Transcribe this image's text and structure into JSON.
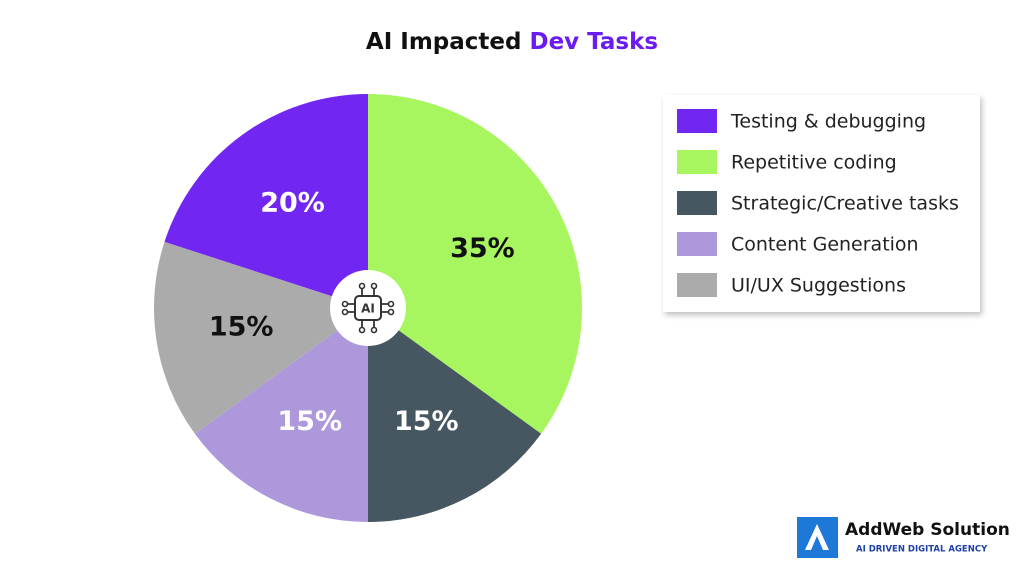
{
  "chart_data": {
    "type": "pie",
    "title": {
      "lead": "AI Impacted",
      "highlight": "Dev Tasks"
    },
    "categories": [
      "Testing & debugging",
      "Repetitive coding",
      "Strategic/Creative tasks",
      "Content Generation",
      "UI/UX Suggestions"
    ],
    "values": [
      20,
      35,
      15,
      15,
      15
    ],
    "value_labels": [
      "20%",
      "35%",
      "15%",
      "15%",
      "15%"
    ],
    "colors": [
      "#7226f2",
      "#a8f65f",
      "#465761",
      "#ad98dc",
      "#ababab"
    ],
    "label_colors": [
      "#ffffff",
      "#111111",
      "#ffffff",
      "#ffffff",
      "#111111"
    ],
    "title_highlight_color": "#6a1bf0",
    "center_icon_label": "AI",
    "legend": "top-right"
  },
  "branding": {
    "name": "AddWeb Solution",
    "tagline": "AI DRIVEN DIGITAL AGENCY"
  }
}
